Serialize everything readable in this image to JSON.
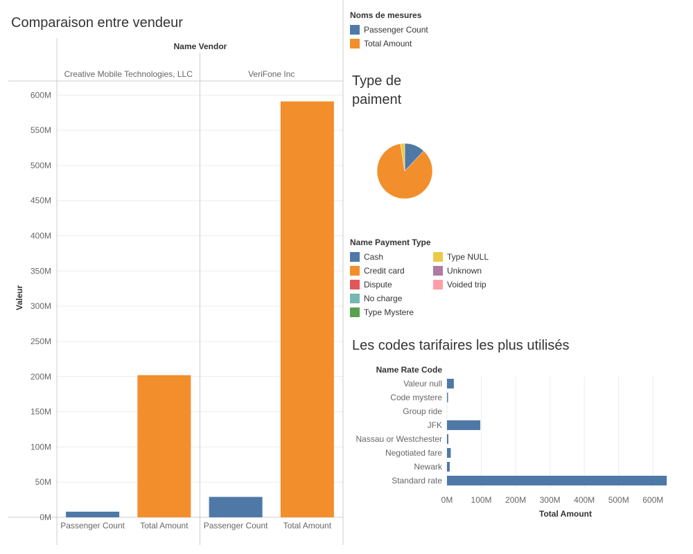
{
  "colors": {
    "blue": "#4e79a7",
    "orange": "#f28e2b",
    "red": "#e15759",
    "teal": "#76b7b2",
    "green": "#59a14f",
    "yellow": "#edc948",
    "purple": "#b07aa1",
    "pink": "#ff9da7",
    "grid": "#ececec",
    "axis": "#cccccc",
    "text": "#333333",
    "muted": "#666666"
  },
  "vendor_title": "Comparaison entre vendeur",
  "measures_legend": {
    "title": "Noms de mesures",
    "items": [
      {
        "label": "Passenger Count",
        "color": "#4e79a7"
      },
      {
        "label": "Total Amount",
        "color": "#f28e2b"
      }
    ]
  },
  "payment_title_line1": "Type de",
  "payment_title_line2": "paiment",
  "payment_legend": {
    "title": "Name Payment Type",
    "col1": [
      {
        "label": "Cash",
        "color": "#4e79a7"
      },
      {
        "label": "Credit card",
        "color": "#f28e2b"
      },
      {
        "label": "Dispute",
        "color": "#e15759"
      },
      {
        "label": "No charge",
        "color": "#76b7b2"
      },
      {
        "label": "Type Mystere",
        "color": "#59a14f"
      }
    ],
    "col2": [
      {
        "label": "Type NULL",
        "color": "#edc948"
      },
      {
        "label": "Unknown",
        "color": "#b07aa1"
      },
      {
        "label": "Voided trip",
        "color": "#ff9da7"
      }
    ]
  },
  "rate_title": "Les codes tarifaires les plus utilisés",
  "chart_data": [
    {
      "type": "bar",
      "title": "Comparaison entre vendeur",
      "facet_header": "Name Vendor",
      "facets": [
        "Creative Mobile Technologies, LLC",
        "VeriFone Inc"
      ],
      "categories": [
        "Passenger Count",
        "Total Amount"
      ],
      "series": [
        {
          "name": "Passenger Count",
          "color": "#4e79a7"
        },
        {
          "name": "Total Amount",
          "color": "#f28e2b"
        }
      ],
      "values": [
        [
          8,
          202
        ],
        [
          29,
          591
        ]
      ],
      "ylabel": "Valeur",
      "ylim": [
        0,
        620
      ],
      "yticks": [
        0,
        50,
        100,
        150,
        200,
        250,
        300,
        350,
        400,
        450,
        500,
        550,
        600
      ],
      "ytick_labels": [
        "0M",
        "50M",
        "100M",
        "150M",
        "200M",
        "250M",
        "300M",
        "350M",
        "400M",
        "450M",
        "500M",
        "550M",
        "600M"
      ],
      "grid": true
    },
    {
      "type": "pie",
      "title": "Type de paiment",
      "slices": [
        {
          "label": "Cash",
          "value": 12,
          "color": "#4e79a7"
        },
        {
          "label": "Credit card",
          "value": 85.5,
          "color": "#f28e2b"
        },
        {
          "label": "Type NULL",
          "value": 2.5,
          "color": "#edc948"
        }
      ]
    },
    {
      "type": "bar",
      "orientation": "horizontal",
      "title": "Les codes tarifaires les plus utilisés",
      "ylabel": "Name Rate Code",
      "xlabel": "Total Amount",
      "categories": [
        "Valeur null",
        "Code mystere",
        "Group ride",
        "JFK",
        "Nassau or Westchester",
        "Negotiated fare",
        "Newark",
        "Standard rate"
      ],
      "values": [
        20,
        3,
        0,
        97,
        4,
        11,
        8,
        640
      ],
      "xlim": [
        0,
        660
      ],
      "xticks": [
        0,
        100,
        200,
        300,
        400,
        500,
        600
      ],
      "xtick_labels": [
        "0M",
        "100M",
        "200M",
        "300M",
        "400M",
        "500M",
        "600M"
      ],
      "color": "#4e79a7",
      "grid": true
    }
  ]
}
